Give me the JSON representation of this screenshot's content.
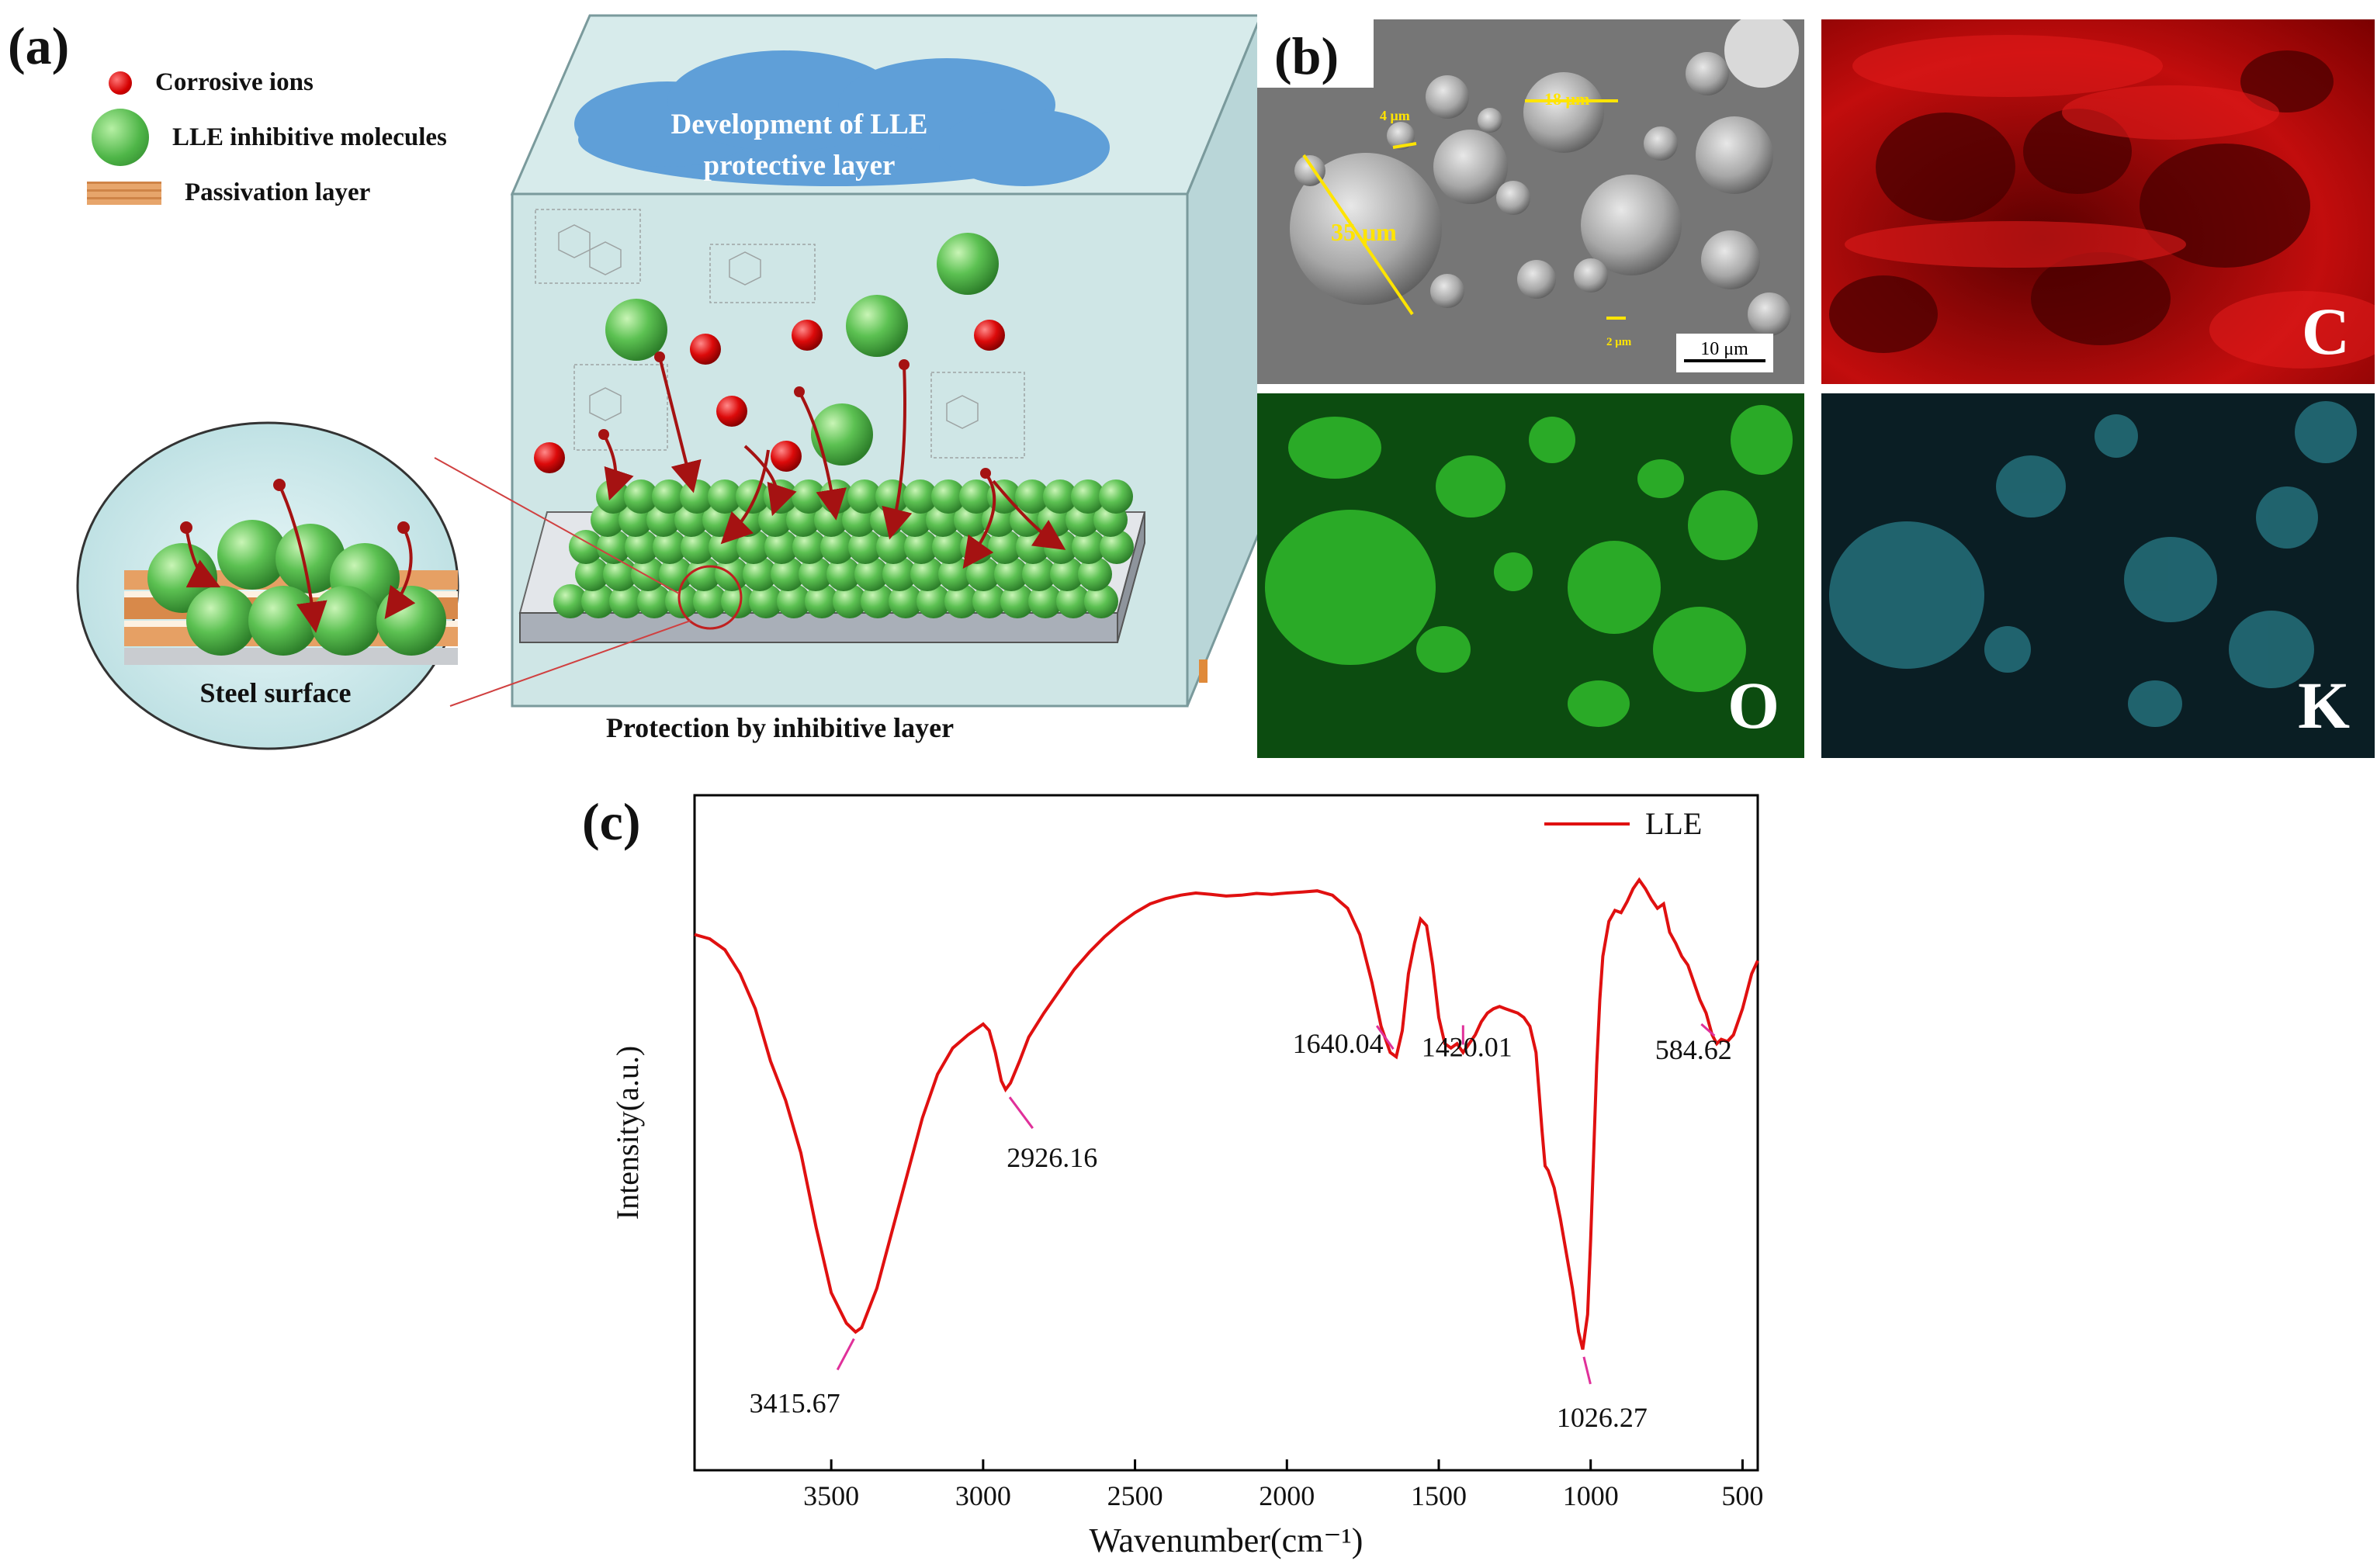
{
  "panel_a": {
    "label": "(a)",
    "legend": [
      {
        "text": "Corrosive ions",
        "icon": "red-sphere"
      },
      {
        "text": "LLE inhibitive molecules",
        "icon": "green-sphere"
      },
      {
        "text": "Passivation layer",
        "icon": "orange-layer"
      }
    ],
    "cloud_text_line1": "Development of LLE",
    "cloud_text_line2": "protective layer",
    "inset_label": "Steel surface",
    "caption": "Protection by inhibitive layer",
    "colors": {
      "ion": "#d50000",
      "molecule": "#4fb648",
      "cube_fill": "#c9e3e4",
      "cloud": "#5f9fd8",
      "arrow": "#b01010"
    }
  },
  "panel_b": {
    "label": "(b)",
    "sem_labels": {
      "size_35": "35 μm",
      "size_18": "18 μm",
      "size_4": "4 μm",
      "size_2": "2 μm",
      "scale_bar": "10 μm"
    },
    "maps": [
      {
        "element": "C",
        "color": "#d01010"
      },
      {
        "element": "O",
        "color": "#22b022"
      },
      {
        "element": "K",
        "color": "#3bb8c8"
      }
    ]
  },
  "panel_c": {
    "label": "(c)",
    "legend_label": "LLE",
    "annotations": [
      "3415.67",
      "2926.16",
      "1640.04",
      "1420.01",
      "1026.27",
      "584.62"
    ]
  },
  "chart_data": {
    "type": "line",
    "title": "",
    "xlabel": "Wavenumber(cm⁻¹)",
    "ylabel": "Intensity(a.u.)",
    "xlim": [
      3950,
      450
    ],
    "x_reversed": true,
    "xticks": [
      3500,
      3000,
      2500,
      2000,
      1500,
      1000,
      500
    ],
    "y_ticks_shown": false,
    "legend_position": "top-right",
    "series": [
      {
        "name": "LLE",
        "color": "#e01010",
        "x": [
          3950,
          3900,
          3850,
          3800,
          3750,
          3700,
          3650,
          3600,
          3550,
          3500,
          3450,
          3420,
          3400,
          3350,
          3300,
          3250,
          3200,
          3150,
          3100,
          3050,
          3000,
          2980,
          2960,
          2940,
          2926,
          2910,
          2880,
          2850,
          2800,
          2750,
          2700,
          2650,
          2600,
          2550,
          2500,
          2450,
          2400,
          2350,
          2300,
          2250,
          2200,
          2150,
          2100,
          2050,
          2000,
          1950,
          1900,
          1850,
          1800,
          1760,
          1720,
          1690,
          1660,
          1640,
          1620,
          1600,
          1580,
          1560,
          1540,
          1520,
          1500,
          1480,
          1460,
          1440,
          1420,
          1400,
          1380,
          1360,
          1340,
          1320,
          1300,
          1280,
          1260,
          1240,
          1220,
          1200,
          1180,
          1160,
          1150,
          1140,
          1130,
          1120,
          1100,
          1080,
          1060,
          1040,
          1026,
          1010,
          1000,
          990,
          980,
          970,
          960,
          940,
          920,
          900,
          880,
          860,
          840,
          820,
          800,
          780,
          760,
          740,
          720,
          700,
          680,
          660,
          640,
          620,
          600,
          585,
          570,
          550,
          530,
          500,
          470,
          450
        ],
        "values": [
          15.0,
          16.0,
          18.5,
          24.0,
          32.0,
          44.0,
          53.0,
          65.0,
          82.0,
          97.0,
          104.0,
          106.0,
          105.0,
          96.0,
          83.0,
          70.0,
          57.0,
          47.0,
          41.0,
          38.0,
          35.5,
          37.0,
          42.0,
          48.5,
          50.5,
          49.0,
          44.0,
          38.5,
          33.0,
          28.0,
          23.0,
          19.0,
          15.5,
          12.5,
          10.0,
          8.0,
          6.8,
          6.0,
          5.5,
          5.8,
          6.2,
          6.0,
          5.6,
          5.8,
          5.5,
          5.3,
          5.0,
          6.0,
          9.0,
          15.0,
          26.0,
          36.0,
          42.0,
          43.0,
          37.0,
          24.0,
          17.0,
          11.5,
          13.0,
          22.0,
          34.0,
          40.0,
          41.0,
          40.0,
          42.0,
          40.0,
          38.0,
          35.0,
          33.0,
          32.0,
          31.5,
          32.0,
          32.5,
          33.0,
          34.0,
          36.0,
          42.0,
          60.0,
          68.0,
          69.0,
          71.0,
          73.0,
          80.0,
          88.0,
          96.0,
          106.0,
          110.0,
          102.0,
          85.0,
          65.0,
          45.0,
          30.0,
          20.0,
          12.0,
          9.5,
          10.0,
          7.5,
          4.5,
          2.5,
          4.5,
          7.0,
          9.0,
          8.0,
          14.5,
          17.0,
          20.0,
          22.0,
          26.0,
          30.0,
          33.0,
          38.0,
          40.0,
          39.0,
          39.5,
          38.0,
          32.0,
          24.0,
          21.0
        ]
      }
    ]
  }
}
